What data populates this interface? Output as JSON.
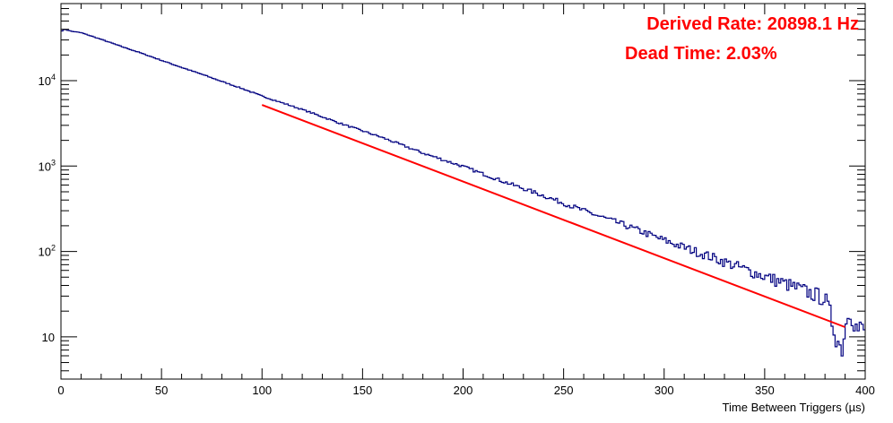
{
  "chart_data": {
    "type": "histogram",
    "title": "",
    "xlabel": "Time Between Triggers (µs)",
    "ylabel": "",
    "xlim": [
      0,
      400
    ],
    "ylim": [
      3.2,
      80000
    ],
    "yscale": "log",
    "grid": false,
    "x_ticks": [
      "0",
      "50",
      "100",
      "150",
      "200",
      "250",
      "300",
      "350",
      "400"
    ],
    "y_ticks": [
      {
        "value": 10,
        "base": "10",
        "exp": ""
      },
      {
        "value": 100,
        "base": "10",
        "exp": "2"
      },
      {
        "value": 1000,
        "base": "10",
        "exp": "3"
      },
      {
        "value": 10000,
        "base": "10",
        "exp": "4"
      }
    ],
    "histogram": {
      "name": "",
      "color": "#000080",
      "bin_width": 1,
      "x": [
        0,
        2,
        5,
        10,
        20,
        30,
        40,
        50,
        60,
        70,
        80,
        90,
        100,
        120,
        140,
        160,
        180,
        200,
        220,
        240,
        260,
        280,
        300,
        320,
        340,
        360,
        380,
        388,
        392,
        396,
        400
      ],
      "y": [
        38000,
        40000,
        38000,
        36500,
        30500,
        25200,
        21000,
        17300,
        14300,
        11900,
        9800,
        8100,
        6600,
        4600,
        3100,
        2150,
        1420,
        990,
        660,
        450,
        300,
        205,
        135,
        92,
        62,
        42,
        28,
        7,
        22,
        12,
        12
      ]
    },
    "fit": {
      "name": "",
      "color": "#ff0000",
      "x": [
        100,
        390
      ],
      "y": [
        5200,
        13
      ]
    },
    "annotations": [
      "Derived Rate: 20898.1 Hz",
      "Dead Time: 2.03%"
    ]
  }
}
